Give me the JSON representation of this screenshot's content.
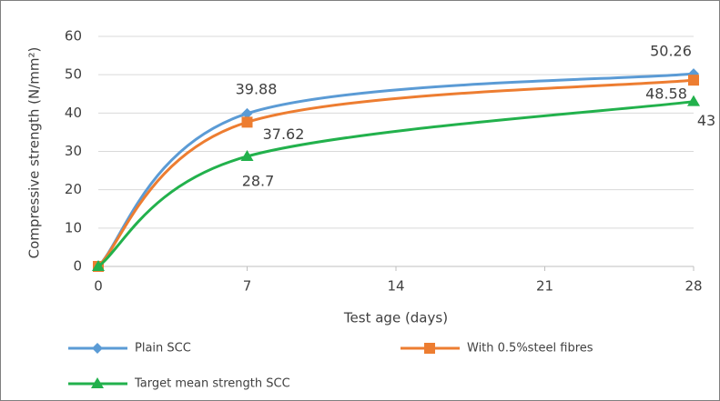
{
  "chart_data": {
    "type": "line",
    "x_label": "Test age (days)",
    "y_label": "Compressive strength (N/mm²)",
    "x": [
      0,
      7,
      28
    ],
    "xlim": [
      0,
      28
    ],
    "xticks": [
      0,
      7,
      14,
      21,
      28
    ],
    "ylim": [
      0,
      60
    ],
    "yticks": [
      0,
      10,
      20,
      30,
      40,
      50,
      60
    ],
    "grid": true,
    "smooth": true,
    "legend": "bottom",
    "series": [
      {
        "name": "Plain SCC",
        "color": "#5b9bd5",
        "marker": "diamond",
        "values": [
          0,
          39.88,
          50.26
        ],
        "value_labels": [
          null,
          "39.88",
          "50.26"
        ]
      },
      {
        "name": "With 0.5%steel fibres",
        "color": "#ed7d31",
        "marker": "square",
        "values": [
          0,
          37.62,
          48.58
        ],
        "value_labels": [
          null,
          "37.62",
          "48.58"
        ]
      },
      {
        "name": "Target mean strength SCC",
        "color": "#22b14c",
        "marker": "triangle",
        "values": [
          0,
          28.7,
          43
        ],
        "value_labels": [
          null,
          "28.7",
          "43"
        ]
      }
    ]
  }
}
